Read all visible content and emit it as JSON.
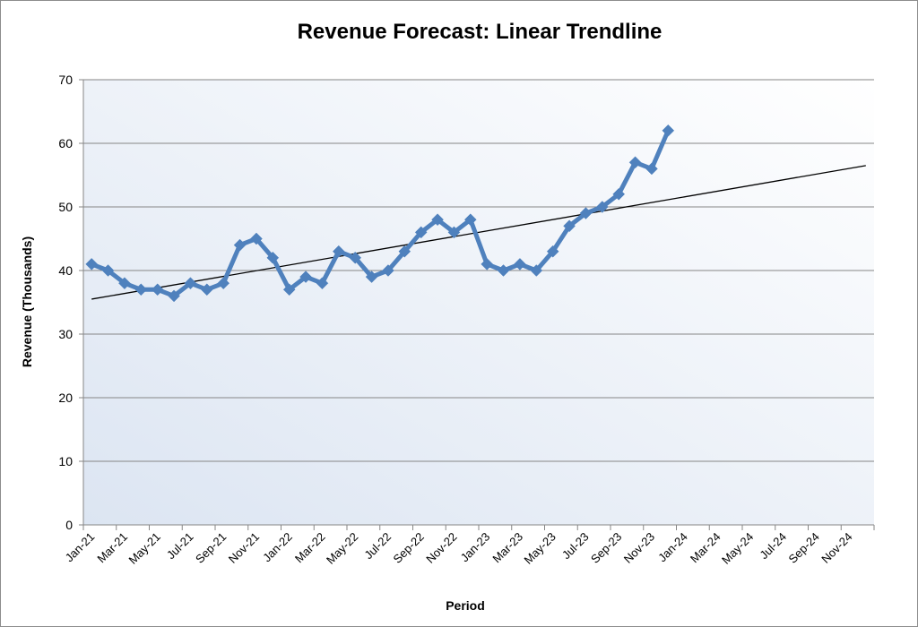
{
  "chart_data": {
    "type": "line",
    "title": "Revenue Forecast: Linear Trendline",
    "xlabel": "Period",
    "ylabel": "Revenue (Thousands)",
    "ylim": [
      0,
      70
    ],
    "yticks": [
      0,
      10,
      20,
      30,
      40,
      50,
      60,
      70
    ],
    "grid": true,
    "x_tick_labels": [
      "Jan-21",
      "Mar-21",
      "May-21",
      "Jul-21",
      "Sep-21",
      "Nov-21",
      "Jan-22",
      "Mar-22",
      "May-22",
      "Jul-22",
      "Sep-22",
      "Nov-22",
      "Jan-23",
      "Mar-23",
      "May-23",
      "Jul-23",
      "Sep-23",
      "Nov-23",
      "Jan-24",
      "Mar-24",
      "May-24",
      "Jul-24",
      "Sep-24",
      "Nov-24"
    ],
    "x_range": [
      "Jan-21",
      "Dec-24"
    ],
    "series": [
      {
        "x": [
          "Jan-21",
          "Feb-21",
          "Mar-21",
          "Apr-21",
          "May-21",
          "Jun-21",
          "Jul-21",
          "Aug-21",
          "Sep-21",
          "Oct-21",
          "Nov-21",
          "Dec-21",
          "Jan-22",
          "Feb-22",
          "Mar-22",
          "Apr-22",
          "May-22",
          "Jun-22",
          "Jul-22",
          "Aug-22",
          "Sep-22",
          "Oct-22",
          "Nov-22",
          "Dec-22",
          "Jan-23",
          "Feb-23",
          "Mar-23",
          "Apr-23",
          "May-23",
          "Jun-23",
          "Jul-23",
          "Aug-23",
          "Sep-23",
          "Oct-23",
          "Nov-23",
          "Dec-23"
        ],
        "values": [
          41,
          40,
          38,
          37,
          37,
          36,
          38,
          37,
          38,
          44,
          45,
          42,
          37,
          39,
          38,
          43,
          42,
          39,
          40,
          43,
          46,
          48,
          46,
          48,
          41,
          40,
          41,
          40,
          43,
          47,
          49,
          50,
          52,
          57,
          56,
          62
        ],
        "color": "#4f81bd",
        "marker": "diamond"
      }
    ],
    "trendline": {
      "type": "linear",
      "start": {
        "x": "Jan-21",
        "y": 35.5
      },
      "end": {
        "x": "Dec-24",
        "y": 56.5
      },
      "color": "#000000"
    }
  }
}
